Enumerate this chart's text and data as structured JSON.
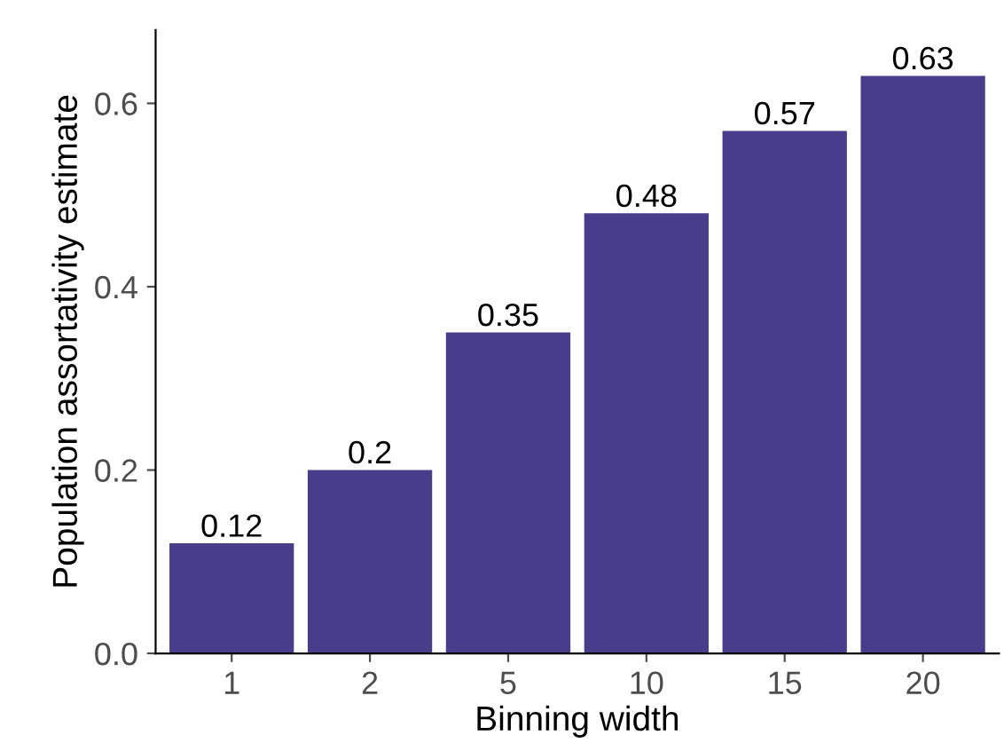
{
  "chart_data": {
    "type": "bar",
    "xlabel": "Binning width",
    "ylabel": "Population assortativity estimate",
    "categories": [
      "1",
      "2",
      "5",
      "10",
      "15",
      "20"
    ],
    "values": [
      0.12,
      0.2,
      0.35,
      0.48,
      0.57,
      0.63
    ],
    "color": "#483d8b",
    "data_labels": true,
    "ylim": [
      0,
      0.68
    ],
    "yticks": [
      {
        "value": 0,
        "label": "0.0"
      },
      0.2,
      0.4,
      0.6
    ],
    "grid": false,
    "legend": false
  }
}
